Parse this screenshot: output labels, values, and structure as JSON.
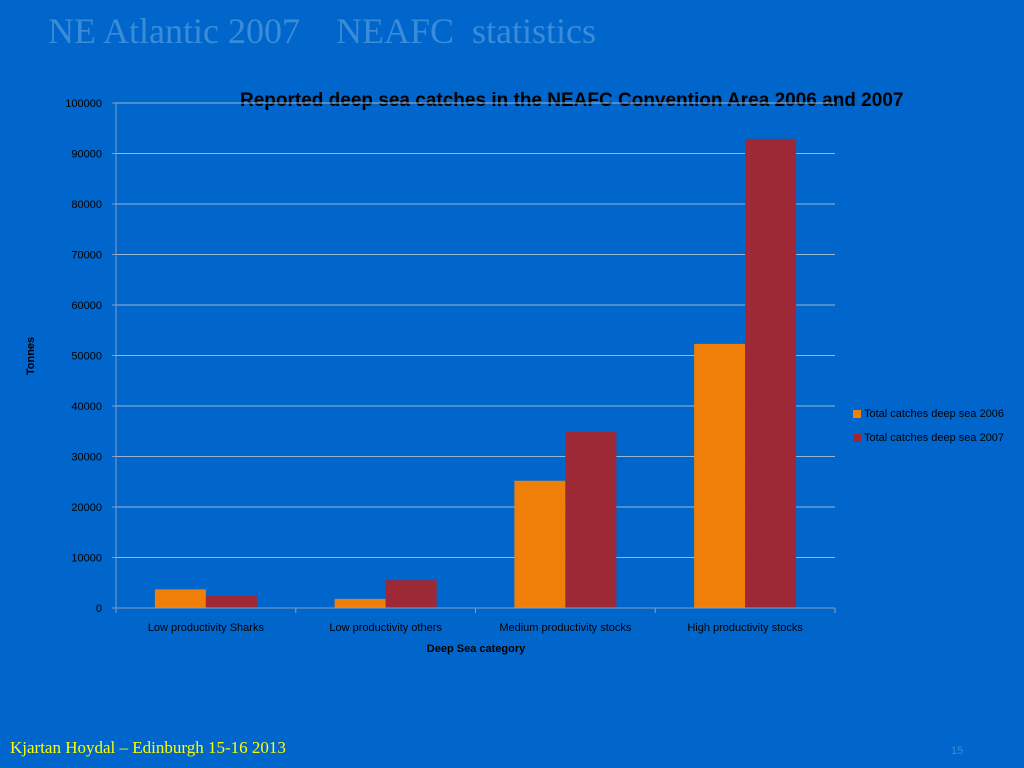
{
  "slide": {
    "title": "NE Atlantic 2007    NEAFC  statistics",
    "footer": "Kjartan Hoydal – Edinburgh 15-16 2013",
    "page_number": "15"
  },
  "colors": {
    "background": "#0066cc",
    "series_2006": "#f07f09",
    "series_2007": "#9c2935",
    "gridline": "#9ab6d6",
    "footer_text": "#ffff00"
  },
  "chart_data": {
    "type": "bar",
    "title": "Reported deep sea catches in the NEAFC Convention Area 2006 and 2007",
    "xlabel": "Deep Sea category",
    "ylabel": "Tonnes",
    "categories": [
      "Low productivity Sharks",
      "Low productivity others",
      "Medium productivity stocks",
      "High productivity stocks"
    ],
    "series": [
      {
        "name": "Total catches deep sea  2006",
        "values": [
          3700,
          1800,
          25200,
          52300
        ]
      },
      {
        "name": "Total catches deep sea 2007",
        "values": [
          2400,
          5500,
          34900,
          92900
        ]
      }
    ],
    "ylim": [
      0,
      100000
    ],
    "yticks": [
      "0",
      "10000",
      "20000",
      "30000",
      "40000",
      "50000",
      "60000",
      "70000",
      "80000",
      "90000",
      "100000"
    ],
    "grid": true,
    "legend_position": "right"
  }
}
